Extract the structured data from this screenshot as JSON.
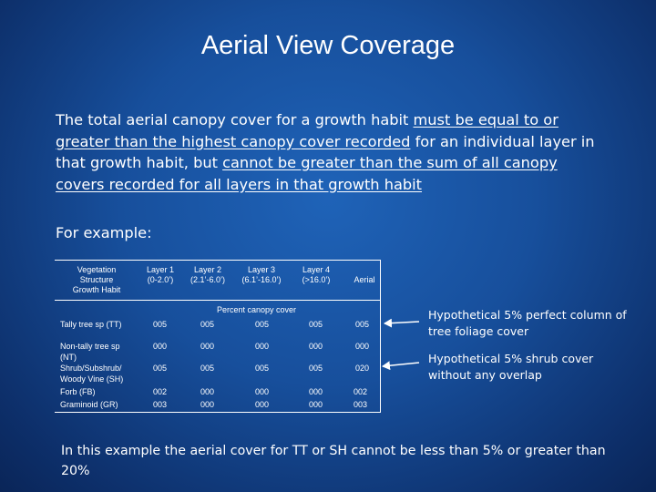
{
  "title": "Aerial View Coverage",
  "paragraph": {
    "p1": "The total aerial canopy cover for a growth habit ",
    "u1": "must be equal to or greater than the highest canopy cover recorded",
    "p2": " for an individual layer in that growth habit, but ",
    "u2": "cannot be greater than the sum of all canopy covers recorded for all layers in that growth habit"
  },
  "example_label": "For example:",
  "table": {
    "headers": {
      "habit": [
        "Vegetation",
        "Structure",
        "Growth Habit"
      ],
      "layer1": [
        "Layer 1",
        "(0-2.0’)"
      ],
      "layer2": [
        "Layer 2",
        "(2.1’-6.0’)"
      ],
      "layer3": [
        "Layer 3",
        "(6.1’-16.0’)"
      ],
      "layer4": [
        "Layer 4",
        "(>16.0’)"
      ],
      "aerial": "Aerial"
    },
    "subheader": "Percent canopy cover",
    "rows": [
      {
        "label": "Tally tree sp (TT)",
        "values": [
          "005",
          "005",
          "005",
          "005",
          "005"
        ]
      },
      {
        "label": "Non-tally tree sp",
        "values": [
          "000",
          "000",
          "000",
          "000",
          "000"
        ]
      },
      {
        "label": "(NT)",
        "values": []
      },
      {
        "label": "Shrub/Subshrub/",
        "values": [
          "005",
          "005",
          "005",
          "005",
          "020"
        ]
      },
      {
        "label": "Woody Vine (SH)",
        "values": []
      },
      {
        "label": "Forb (FB)",
        "values": [
          "002",
          "000",
          "000",
          "000",
          "002"
        ]
      },
      {
        "label": "Graminoid (GR)",
        "values": [
          "003",
          "000",
          "000",
          "000",
          "003"
        ]
      }
    ]
  },
  "notes": {
    "note1": "Hypothetical 5% perfect column of tree foliage cover",
    "note2": "Hypothetical 5% shrub cover without any overlap"
  },
  "bottom_text": "In this example the aerial cover for TT or SH cannot be less than 5% or greater than 20%"
}
